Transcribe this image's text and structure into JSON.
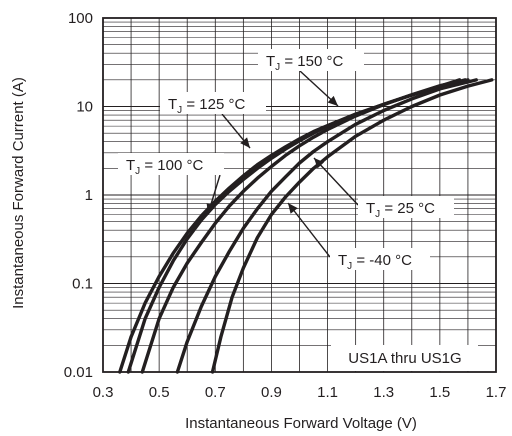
{
  "chart_data": {
    "type": "line",
    "title": "",
    "xlabel": "Instantaneous Forward Voltage (V)",
    "ylabel": "Instantaneous Forward Current (A)",
    "xlim": [
      0.3,
      1.7
    ],
    "ylim": [
      0.01,
      100
    ],
    "yscale": "log",
    "grid": true,
    "x_ticks": [
      "0.3",
      "0.5",
      "0.7",
      "0.9",
      "1.1",
      "1.3",
      "1.5",
      "1.7"
    ],
    "y_ticks": [
      "0.01",
      "0.1",
      "1",
      "10",
      "100"
    ],
    "note": "US1A thru US1G",
    "series": [
      {
        "name": "T_J = 150 °C",
        "label_main": "T",
        "label_sub": "J",
        "label_rest": " = 150 °C",
        "x": [
          0.36,
          0.4,
          0.45,
          0.5,
          0.55,
          0.6,
          0.65,
          0.7,
          0.75,
          0.8,
          0.85,
          0.9,
          0.95,
          1.0,
          1.05,
          1.1,
          1.2,
          1.3,
          1.4,
          1.5,
          1.57
        ],
        "y": [
          0.01,
          0.025,
          0.06,
          0.12,
          0.22,
          0.37,
          0.58,
          0.85,
          1.2,
          1.65,
          2.2,
          2.8,
          3.5,
          4.3,
          5.2,
          6.1,
          8.2,
          10.6,
          13.5,
          17.0,
          20.0
        ]
      },
      {
        "name": "T_J = 125 °C",
        "label_main": "T",
        "label_sub": "J",
        "label_rest": " = 125 °C",
        "x": [
          0.39,
          0.45,
          0.5,
          0.55,
          0.6,
          0.65,
          0.7,
          0.75,
          0.8,
          0.85,
          0.9,
          0.95,
          1.0,
          1.05,
          1.1,
          1.2,
          1.3,
          1.4,
          1.5,
          1.59
        ],
        "y": [
          0.01,
          0.04,
          0.09,
          0.18,
          0.32,
          0.52,
          0.78,
          1.1,
          1.5,
          2.0,
          2.6,
          3.3,
          4.1,
          5.0,
          6.0,
          8.1,
          10.6,
          13.5,
          16.8,
          20.0
        ]
      },
      {
        "name": "T_J = 100 °C",
        "label_main": "T",
        "label_sub": "J",
        "label_rest": " = 100 °C",
        "x": [
          0.44,
          0.5,
          0.55,
          0.6,
          0.65,
          0.7,
          0.75,
          0.8,
          0.85,
          0.9,
          0.95,
          1.0,
          1.05,
          1.1,
          1.2,
          1.3,
          1.4,
          1.5,
          1.6
        ],
        "y": [
          0.01,
          0.04,
          0.09,
          0.17,
          0.29,
          0.48,
          0.75,
          1.1,
          1.55,
          2.1,
          2.8,
          3.6,
          4.5,
          5.5,
          7.8,
          10.5,
          13.6,
          17.2,
          20.0
        ]
      },
      {
        "name": "T_J = 25 °C",
        "label_main": "T",
        "label_sub": "J",
        "label_rest": " = 25 °C",
        "x": [
          0.565,
          0.6,
          0.65,
          0.7,
          0.75,
          0.8,
          0.85,
          0.9,
          0.95,
          1.0,
          1.05,
          1.1,
          1.2,
          1.3,
          1.4,
          1.5,
          1.63
        ],
        "y": [
          0.01,
          0.022,
          0.055,
          0.12,
          0.23,
          0.42,
          0.7,
          1.1,
          1.6,
          2.3,
          3.1,
          4.0,
          6.3,
          9.0,
          12.2,
          15.8,
          20.0
        ]
      },
      {
        "name": "T_J = -40 °C",
        "label_main": "T",
        "label_sub": "J",
        "label_rest": " = -40 °C",
        "x": [
          0.69,
          0.72,
          0.76,
          0.8,
          0.85,
          0.9,
          0.95,
          1.0,
          1.05,
          1.1,
          1.2,
          1.3,
          1.4,
          1.5,
          1.6,
          1.685
        ],
        "y": [
          0.01,
          0.025,
          0.07,
          0.15,
          0.33,
          0.6,
          0.95,
          1.4,
          2.0,
          2.7,
          4.6,
          7.0,
          10.0,
          13.5,
          17.0,
          20.0
        ]
      }
    ]
  }
}
